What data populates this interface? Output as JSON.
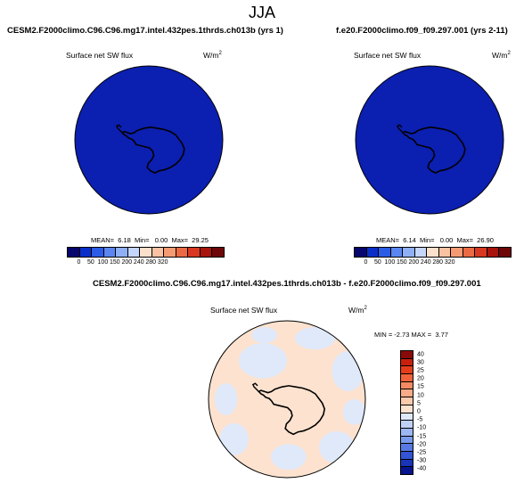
{
  "figure": {
    "season": "JJA"
  },
  "panels": [
    {
      "title": "CESM2.F2000climo.C96.C96.mg17.intel.432pes.1thrds.ch013b (yrs 1)",
      "variable": "Surface net SW flux",
      "units_base": "W/m",
      "units_exp": "2",
      "stats": "MEAN=  6.18  Min=   0.00  Max=  29.25",
      "fill_color": "#0b1fb0"
    },
    {
      "title": "f.e20.F2000climo.f09_f09.297.001 (yrs 2-11)",
      "variable": "Surface net SW flux",
      "units_base": "W/m",
      "units_exp": "2",
      "stats": "MEAN=  6.14  Min=   0.00  Max=  26.90",
      "fill_color": "#0b1fb0"
    }
  ],
  "diff_panel": {
    "title": "CESM2.F2000climo.C96.C96.mg17.intel.432pes.1thrds.ch013b - f.e20.F2000climo.f09_f09.297.001",
    "variable": "Surface net SW flux",
    "units_base": "W/m",
    "units_exp": "2",
    "stats": "MIN = -2.73 MAX =  3.77"
  },
  "colorbars": {
    "abs_ticks": [
      "0",
      "50",
      "100",
      "150",
      "200",
      "240",
      "280",
      "320"
    ],
    "abs_colors": [
      "#06066e",
      "#0a2fc8",
      "#2a5ce6",
      "#5b86f0",
      "#8fb0f7",
      "#c5d6fb",
      "#fbe0cc",
      "#f9c3a3",
      "#f59b73",
      "#ec6a43",
      "#d83820",
      "#a8140c",
      "#6e0808"
    ],
    "diff_ticks": [
      "40",
      "30",
      "25",
      "20",
      "15",
      "10",
      "5",
      "0",
      "-5",
      "-10",
      "-15",
      "-20",
      "-25",
      "-30",
      "-40"
    ],
    "diff_colors": [
      "#8a0a0a",
      "#c8200e",
      "#e53d1c",
      "#f1623a",
      "#f58a62",
      "#f8ab88",
      "#fbc9ac",
      "#fde2cf",
      "#dfe9fa",
      "#bfd2f6",
      "#9cb7f1",
      "#7a9bec",
      "#5878e3",
      "#3354d4",
      "#1a34b8",
      "#08148c"
    ]
  },
  "map_colors": {
    "ocean_diff_pos": "#fde2cf",
    "ocean_diff_neg": "#dfe9fa",
    "coast": "#000000"
  }
}
